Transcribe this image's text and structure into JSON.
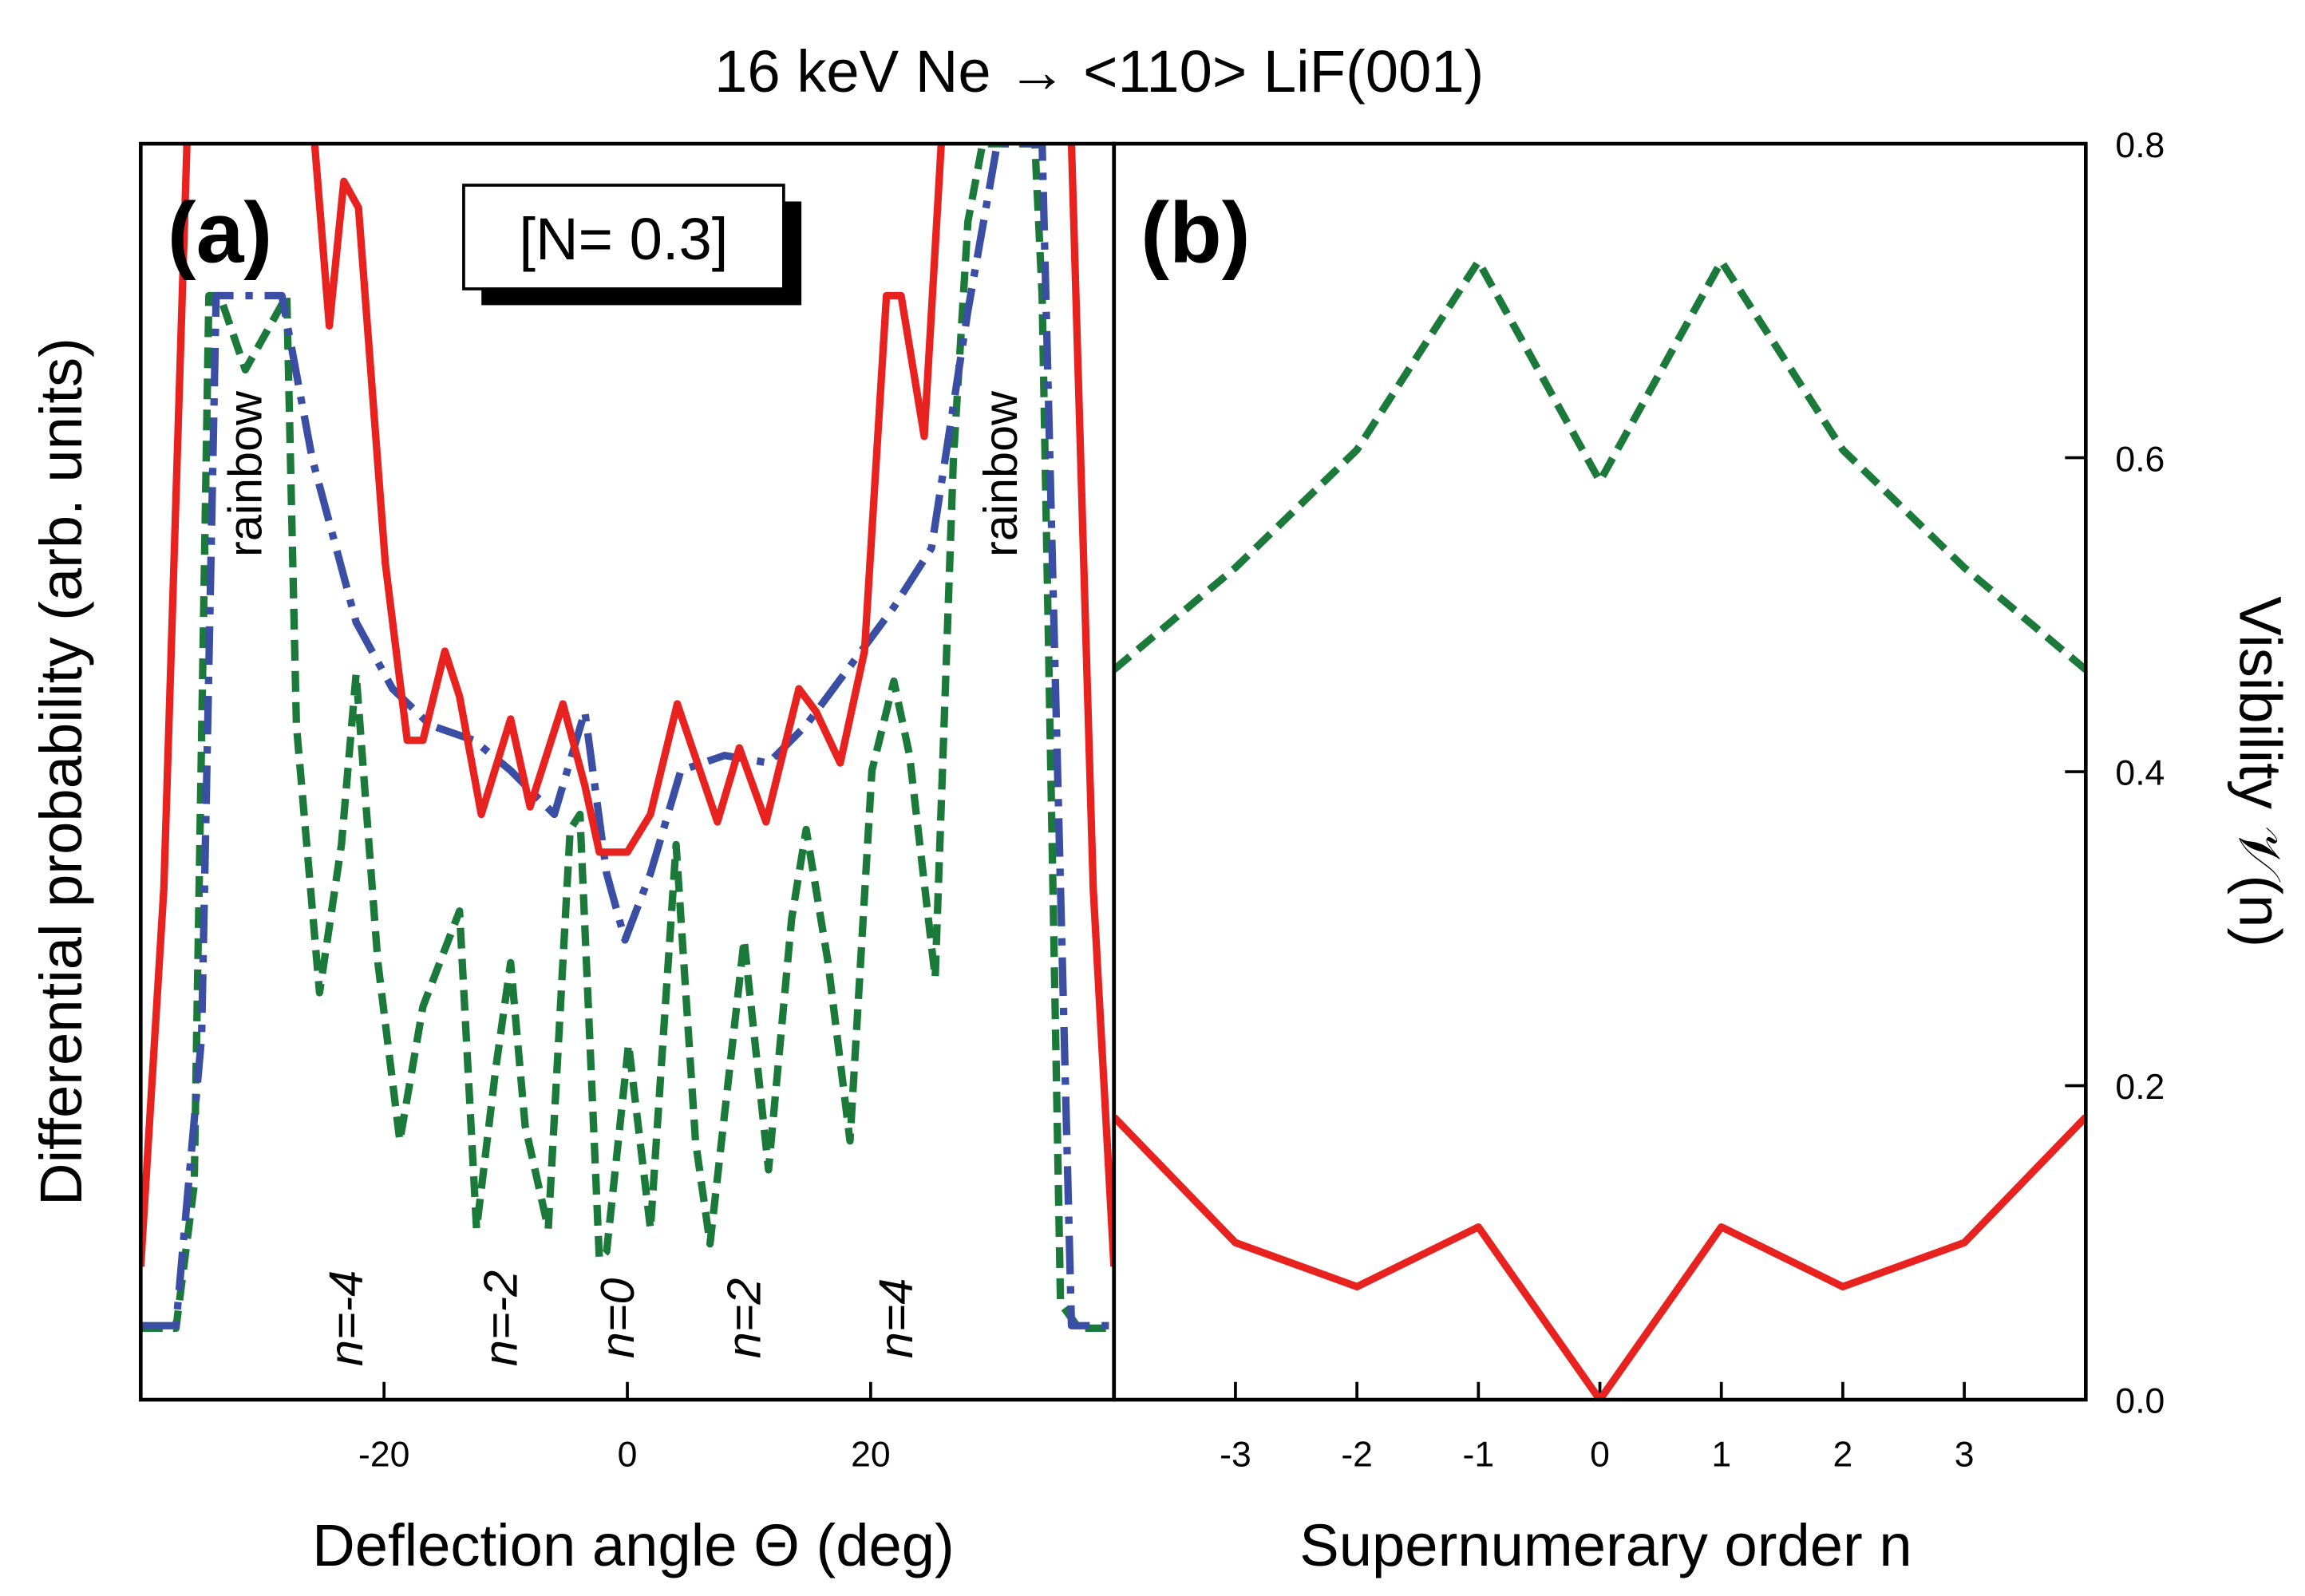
{
  "title": "16 keV Ne → <110> LiF(001)",
  "chart_data": [
    {
      "type": "line",
      "panel_label": "(a)",
      "note": "[N= 0.3]",
      "xlabel": "Deflection angle Θ (deg)",
      "ylabel": "Differential probability (arb. units)",
      "xlim": [
        -40,
        40
      ],
      "xticks": [
        -20,
        0,
        20
      ],
      "ylim": [
        0,
        100
      ],
      "annotations": [
        "rainbow",
        "rainbow",
        "n=-4",
        "n=-2",
        "n=0",
        "n=2",
        "n=4"
      ],
      "series": [
        {
          "color": "#1b7a3a",
          "style": "dashed",
          "x": [
            -39.9,
            -37.1,
            -35.6,
            -34.4,
            -33.5,
            -31.4,
            -28.0,
            -27.2,
            -25.3,
            -23.5,
            -22.3,
            -20.5,
            -18.7,
            -16.8,
            -13.8,
            -12.4,
            -10.8,
            -9.6,
            -8.4,
            -6.5,
            -4.7,
            -3.9,
            -2.3,
            -1.7,
            0.1,
            1.9,
            4.0,
            5.6,
            6.8,
            9.6,
            11.6,
            13.5,
            14.7,
            16.5,
            18.3,
            20.1,
            21.9,
            23.2,
            25.3,
            26.8,
            28.0,
            29.2,
            33.5,
            34.1,
            35.6,
            37.1,
            39.8
          ],
          "values": [
            5.7,
            5.7,
            17.1,
            87.9,
            87.9,
            82.0,
            87.9,
            53.7,
            32.4,
            44.2,
            57.8,
            34.8,
            20.6,
            31.3,
            38.9,
            13.6,
            26.5,
            34.8,
            21.8,
            13.6,
            45.4,
            46.6,
            11.2,
            11.8,
            28.3,
            13.6,
            44.2,
            20.6,
            12.4,
            36.6,
            18.3,
            38.3,
            45.4,
            34.8,
            20.6,
            50.1,
            57.2,
            51.3,
            33.6,
            74.9,
            93.8,
            100,
            100,
            87.9,
            7.7,
            5.7,
            5.7
          ]
        },
        {
          "color": "#3a4fa3",
          "style": "dashdot",
          "x": [
            -39.9,
            -37.1,
            -35.0,
            -33.8,
            -28.4,
            -25.9,
            -22.3,
            -19.3,
            -16.2,
            -12.6,
            -9.6,
            -6.0,
            -3.5,
            -1.7,
            -0.2,
            1.9,
            4.4,
            8.0,
            11.6,
            14.7,
            18.3,
            21.9,
            25.0,
            28.0,
            30.4,
            34.1,
            35.3,
            36.5,
            39.8
          ],
          "values": [
            5.9,
            5.9,
            28.9,
            87.9,
            87.9,
            74.9,
            61.9,
            56.6,
            53.7,
            52.5,
            50.1,
            46.6,
            54.8,
            41.9,
            36.6,
            41.9,
            50.1,
            51.3,
            50.7,
            53.7,
            58.4,
            63.1,
            67.8,
            86.7,
            100,
            100,
            52.5,
            5.9,
            5.9
          ]
        },
        {
          "color": "#e8221f",
          "style": "solid",
          "x": [
            -40,
            -38.1,
            -36.2,
            -35.6,
            -26.5,
            -25.7,
            -24.5,
            -23.3,
            -22.1,
            -19.9,
            -18.1,
            -16.8,
            -15.0,
            -13.8,
            -12.0,
            -9.6,
            -8.0,
            -5.3,
            -3.5,
            -2.3,
            0,
            1.9,
            4.1,
            7.4,
            9.2,
            11.4,
            14.1,
            15.5,
            17.5,
            19.5,
            21.3,
            22.5,
            24.4,
            25.8,
            26.8,
            35.6,
            36.5,
            38.3,
            40
          ],
          "values": [
            10.6,
            40.7,
            100,
            120,
            120,
            100,
            85.5,
            97,
            94.9,
            66.6,
            52.5,
            52.5,
            59.6,
            56,
            46.6,
            54.2,
            47.2,
            55.4,
            48.9,
            43.6,
            43.6,
            46.6,
            55.4,
            46,
            51.9,
            46,
            56.6,
            54.8,
            50.7,
            59.6,
            87.9,
            87.9,
            76.7,
            100,
            120,
            120,
            100,
            40.7,
            10.6
          ]
        }
      ]
    },
    {
      "type": "line",
      "panel_label": "(b)",
      "xlabel": "Supernumerary order n",
      "ylabel": "Visibility 𝒱(n)",
      "xlim": [
        -4,
        4
      ],
      "xticks": [
        -3,
        -2,
        -1,
        0,
        1,
        2,
        3
      ],
      "ylim": [
        0,
        0.8
      ],
      "yticks": [
        {
          "value": 0,
          "label": "0.0"
        },
        0.2,
        0.4,
        0.6,
        0.8
      ],
      "y_axis_side": "right",
      "x": [
        -4,
        -3,
        -2,
        -1,
        0,
        1,
        2,
        3,
        4
      ],
      "series": [
        {
          "color": "#1b7a3a",
          "style": "dashed",
          "values": [
            0.465,
            0.53,
            0.605,
            0.725,
            0.585,
            0.725,
            0.605,
            0.53,
            0.465
          ]
        },
        {
          "color": "#e8221f",
          "style": "solid",
          "values": [
            0.18,
            0.1,
            0.072,
            0.11,
            0.0,
            0.11,
            0.072,
            0.1,
            0.18
          ]
        }
      ]
    }
  ]
}
